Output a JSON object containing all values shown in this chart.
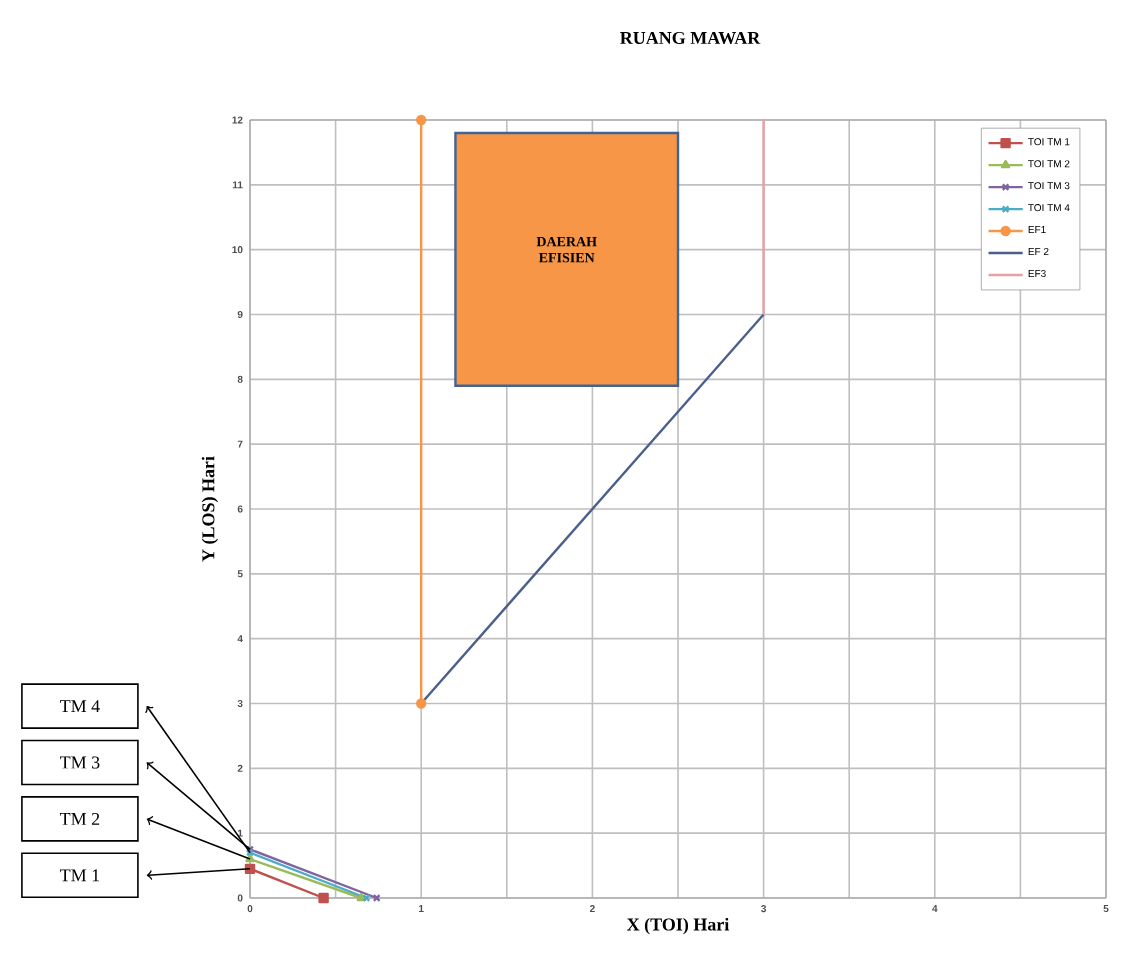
{
  "chart_data": {
    "type": "line",
    "title": "RUANG MAWAR",
    "xlabel": "X (TOI) Hari",
    "ylabel": "Y (LOS) Hari",
    "xlim": [
      0,
      5
    ],
    "ylim": [
      0,
      12
    ],
    "xticks": [
      0,
      1,
      2,
      3,
      4,
      5
    ],
    "yticks": [
      0,
      1,
      2,
      3,
      4,
      5,
      6,
      7,
      8,
      9,
      10,
      11,
      12
    ],
    "grid": true,
    "legend": "top right",
    "series": [
      {
        "name": "TOI TM 1",
        "color": "#c0504d",
        "marker": "square",
        "x": [
          0,
          0.43
        ],
        "values": [
          0.45,
          0
        ]
      },
      {
        "name": "TOI TM 2",
        "color": "#9bbb59",
        "marker": "triangle",
        "x": [
          0,
          0.65
        ],
        "values": [
          0.6,
          0
        ]
      },
      {
        "name": "TOI TM 3",
        "color": "#8064a2",
        "marker": "cross",
        "x": [
          0,
          0.74
        ],
        "values": [
          0.75,
          0
        ]
      },
      {
        "name": "TOI TM 4",
        "color": "#4bacc6",
        "marker": "cross",
        "x": [
          0,
          0.68
        ],
        "values": [
          0.7,
          0
        ]
      },
      {
        "name": "EF1",
        "color": "#f79646",
        "marker": "circle",
        "x": [
          1,
          1
        ],
        "values": [
          3,
          12
        ]
      },
      {
        "name": "EF 2",
        "color": "#4a5f8a",
        "marker": "none",
        "x": [
          1,
          3
        ],
        "values": [
          3,
          9
        ]
      },
      {
        "name": "EF3",
        "color": "#e6a0a0",
        "marker": "none",
        "x": [
          3,
          3
        ],
        "values": [
          9,
          12
        ]
      }
    ],
    "annotations": [
      "DAERAH EFISIEN",
      "TM 4",
      "TM 3",
      "TM 2",
      "TM 1"
    ]
  }
}
